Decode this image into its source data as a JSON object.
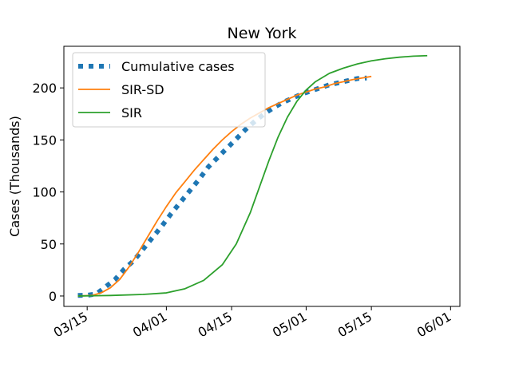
{
  "chart_data": {
    "type": "line",
    "title": "New York",
    "xlabel": "",
    "ylabel": "Cases (Thousands)",
    "x_axis": {
      "type": "date",
      "range": [
        "2020-03-10",
        "2020-06-03"
      ],
      "ticks": [
        {
          "date": "2020-03-15",
          "label": "03/15"
        },
        {
          "date": "2020-04-01",
          "label": "04/01"
        },
        {
          "date": "2020-04-15",
          "label": "04/15"
        },
        {
          "date": "2020-05-01",
          "label": "05/01"
        },
        {
          "date": "2020-05-15",
          "label": "05/15"
        },
        {
          "date": "2020-06-01",
          "label": "06/01"
        }
      ]
    },
    "y_axis": {
      "range": [
        -10,
        240
      ],
      "ticks": [
        0,
        50,
        100,
        150,
        200
      ]
    },
    "grid": false,
    "legend": {
      "position": "top-left"
    },
    "series": [
      {
        "name": "Cumulative cases",
        "style": "dotted",
        "color": "#1f77b4",
        "points": [
          [
            "2020-03-13",
            0.5
          ],
          [
            "2020-03-15",
            0.7
          ],
          [
            "2020-03-17",
            2
          ],
          [
            "2020-03-19",
            9
          ],
          [
            "2020-03-21",
            16
          ],
          [
            "2020-03-23",
            26
          ],
          [
            "2020-03-25",
            34
          ],
          [
            "2020-03-27",
            45
          ],
          [
            "2020-03-29",
            56
          ],
          [
            "2020-03-31",
            67
          ],
          [
            "2020-04-02",
            79
          ],
          [
            "2020-04-04",
            90
          ],
          [
            "2020-04-06",
            101
          ],
          [
            "2020-04-08",
            112
          ],
          [
            "2020-04-10",
            124
          ],
          [
            "2020-04-12",
            133
          ],
          [
            "2020-04-14",
            142
          ],
          [
            "2020-04-16",
            151
          ],
          [
            "2020-04-18",
            160
          ],
          [
            "2020-04-20",
            168
          ],
          [
            "2020-04-22",
            175
          ],
          [
            "2020-04-24",
            181
          ],
          [
            "2020-04-26",
            186
          ],
          [
            "2020-04-28",
            190
          ],
          [
            "2020-04-30",
            194
          ],
          [
            "2020-05-02",
            197
          ],
          [
            "2020-05-04",
            200
          ],
          [
            "2020-05-06",
            203
          ],
          [
            "2020-05-08",
            205
          ],
          [
            "2020-05-10",
            207
          ],
          [
            "2020-05-12",
            209
          ],
          [
            "2020-05-14",
            209.5
          ]
        ]
      },
      {
        "name": "SIR-SD",
        "style": "solid",
        "color": "#ff7f0e",
        "points": [
          [
            "2020-03-13",
            0
          ],
          [
            "2020-03-16",
            0.5
          ],
          [
            "2020-03-18",
            3
          ],
          [
            "2020-03-20",
            8
          ],
          [
            "2020-03-22",
            16
          ],
          [
            "2020-03-24",
            28
          ],
          [
            "2020-03-26",
            42
          ],
          [
            "2020-03-28",
            57
          ],
          [
            "2020-03-30",
            72
          ],
          [
            "2020-04-01",
            86
          ],
          [
            "2020-04-03",
            99
          ],
          [
            "2020-04-05",
            110
          ],
          [
            "2020-04-07",
            121
          ],
          [
            "2020-04-09",
            131
          ],
          [
            "2020-04-11",
            141
          ],
          [
            "2020-04-13",
            150
          ],
          [
            "2020-04-15",
            158
          ],
          [
            "2020-04-17",
            165
          ],
          [
            "2020-04-19",
            171
          ],
          [
            "2020-04-21",
            176
          ],
          [
            "2020-04-23",
            181
          ],
          [
            "2020-04-25",
            185
          ],
          [
            "2020-04-27",
            189
          ],
          [
            "2020-04-29",
            193
          ],
          [
            "2020-05-01",
            196
          ],
          [
            "2020-05-03",
            199
          ],
          [
            "2020-05-05",
            201
          ],
          [
            "2020-05-07",
            204
          ],
          [
            "2020-05-09",
            206
          ],
          [
            "2020-05-11",
            208
          ],
          [
            "2020-05-13",
            209.5
          ],
          [
            "2020-05-15",
            211
          ]
        ]
      },
      {
        "name": "SIR",
        "style": "solid",
        "color": "#2ca02c",
        "points": [
          [
            "2020-03-13",
            0
          ],
          [
            "2020-03-20",
            0.5
          ],
          [
            "2020-03-27",
            1.5
          ],
          [
            "2020-04-01",
            3
          ],
          [
            "2020-04-05",
            7
          ],
          [
            "2020-04-09",
            15
          ],
          [
            "2020-04-13",
            30
          ],
          [
            "2020-04-16",
            50
          ],
          [
            "2020-04-19",
            80
          ],
          [
            "2020-04-21",
            105
          ],
          [
            "2020-04-23",
            130
          ],
          [
            "2020-04-25",
            153
          ],
          [
            "2020-04-27",
            172
          ],
          [
            "2020-04-29",
            187
          ],
          [
            "2020-05-01",
            198
          ],
          [
            "2020-05-03",
            206
          ],
          [
            "2020-05-06",
            214
          ],
          [
            "2020-05-09",
            219
          ],
          [
            "2020-05-12",
            223
          ],
          [
            "2020-05-15",
            226
          ],
          [
            "2020-05-18",
            228
          ],
          [
            "2020-05-21",
            229.5
          ],
          [
            "2020-05-24",
            230.5
          ],
          [
            "2020-05-27",
            231
          ]
        ]
      }
    ]
  }
}
